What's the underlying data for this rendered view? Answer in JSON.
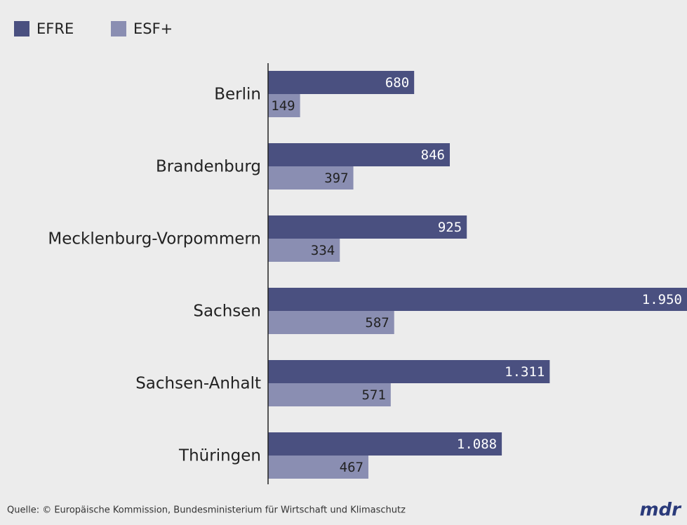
{
  "chart_data": {
    "type": "hbar",
    "categories": [
      "Berlin",
      "Brandenburg",
      "Mecklenburg-Vorpommern",
      "Sachsen",
      "Sachsen-Anhalt",
      "Thüringen"
    ],
    "series": [
      {
        "name": "EFRE",
        "color": "#4a5080",
        "values": [
          680,
          846,
          925,
          1950,
          1311,
          1088
        ],
        "value_labels": [
          "680",
          "846",
          "925",
          "1.950",
          "1.311",
          "1.088"
        ]
      },
      {
        "name": "ESF+",
        "color": "#8a8eb2",
        "values": [
          149,
          397,
          334,
          587,
          571,
          467
        ],
        "value_labels": [
          "149",
          "397",
          "334",
          "587",
          "571",
          "467"
        ]
      }
    ],
    "xlim": [
      0,
      1950
    ],
    "source": "Quelle: © Europäische Kommission, Bundesministerium für Wirtschaft und Klimaschutz",
    "logo": "mdr"
  }
}
